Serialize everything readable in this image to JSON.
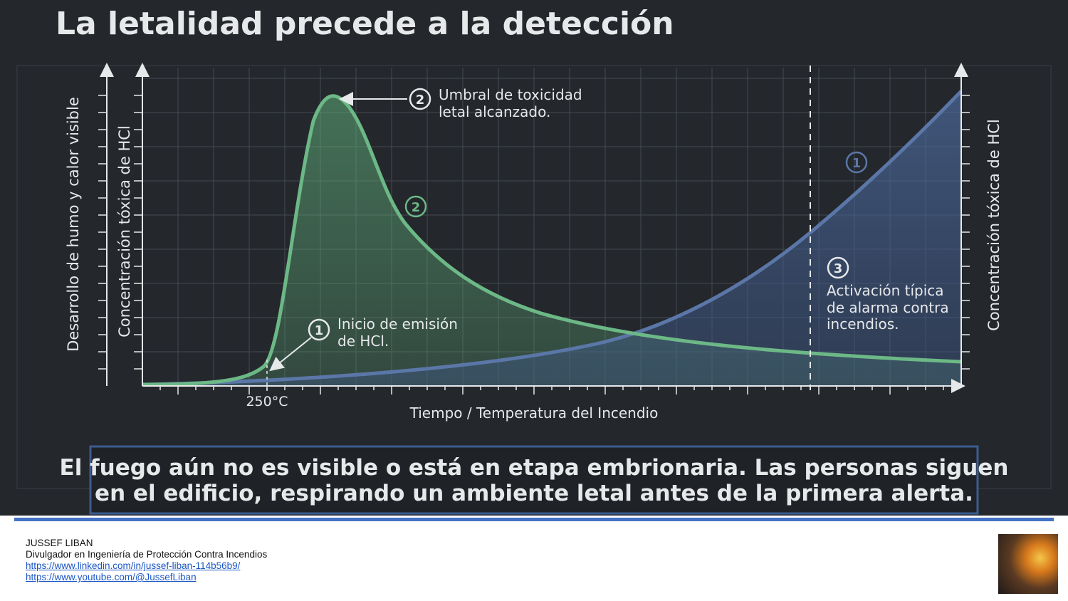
{
  "header": {
    "title": "La letalidad precede a la detección"
  },
  "diagram": {
    "left_axis_labels": [
      "Desarrollo de humo y calor visible",
      "Concentración tóxica de HCl"
    ],
    "right_axis_label": "Concentración tóxica de HCl",
    "x_axis_label": "Tiempo / Temperatura del Incendio",
    "x_marker": "250°C",
    "annotations": [
      {
        "number": "1",
        "lines": [
          "Inicio de emisión",
          "de HCl."
        ]
      },
      {
        "number": "2",
        "lines": [
          "Umbral de toxicidad",
          "letal alcanzado."
        ]
      },
      {
        "number": "3",
        "lines": [
          "Activación típica",
          "de alarma contra",
          "incendios."
        ]
      }
    ],
    "curve_markers": {
      "green": "2",
      "blue": "1"
    }
  },
  "caption": [
    "El fuego aún no es visible o está en etapa embrionaria. Las personas siguen",
    "en el edificio, respirando un ambiente letal antes de la primera alerta."
  ],
  "footer": {
    "author": "JUSSEF LIBAN",
    "role": "Divulgador en Ingeniería de Protección Contra Incendios",
    "links": [
      "https://www.linkedin.com/in/jussef-liban-114b56b9/",
      "https://www.youtube.com/@JussefLiban"
    ]
  }
}
